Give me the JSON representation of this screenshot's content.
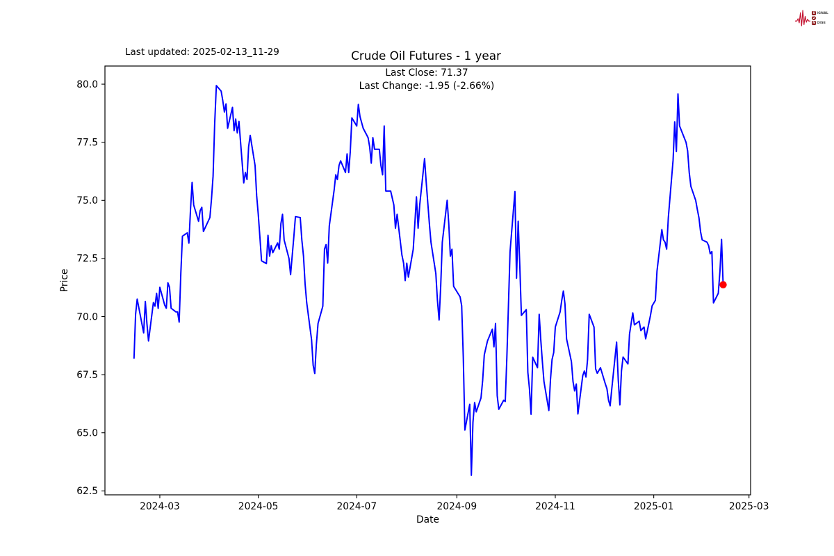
{
  "header": {
    "last_updated": "Last updated: 2025-02-13_11-29",
    "title": "Crude Oil Futures - 1 year",
    "annotation_line1": "Last Close: 71.37",
    "annotation_line2": "Last Change: -1.95 (-2.66%)"
  },
  "logo": {
    "line1_badge": "S",
    "line1_text": "IGNAL",
    "line2_badge": "2",
    "line2_text": "",
    "line3_badge": "N",
    "line3_text": "OISE",
    "waveform_color": "#c41230"
  },
  "chart_data": {
    "type": "line",
    "title": "Crude Oil Futures - 1 year",
    "xlabel": "Date",
    "ylabel": "Price",
    "legend": "none",
    "grid": false,
    "line_color": "#0000ff",
    "last_point_color": "#ff0000",
    "last_close": 71.37,
    "last_change": -1.95,
    "last_change_pct": -2.66,
    "x_ticks": [
      "2024-03",
      "2024-05",
      "2024-07",
      "2024-09",
      "2024-11",
      "2025-01",
      "2025-03"
    ],
    "y_ticks": [
      62.5,
      65.0,
      67.5,
      70.0,
      72.5,
      75.0,
      77.5,
      80.0
    ],
    "xlim": [
      "2024-01-27",
      "2025-03-02"
    ],
    "ylim": [
      62.33,
      80.78
    ],
    "series": [
      {
        "name": "Crude Oil Futures",
        "points": [
          [
            "2024-02-14",
            68.19
          ],
          [
            "2024-02-15",
            70.1
          ],
          [
            "2024-02-16",
            70.75
          ],
          [
            "2024-02-20",
            69.3
          ],
          [
            "2024-02-21",
            70.65
          ],
          [
            "2024-02-22",
            69.7
          ],
          [
            "2024-02-23",
            68.95
          ],
          [
            "2024-02-26",
            70.6
          ],
          [
            "2024-02-27",
            70.45
          ],
          [
            "2024-02-28",
            71.0
          ],
          [
            "2024-02-29",
            70.35
          ],
          [
            "2024-03-01",
            71.26
          ],
          [
            "2024-03-04",
            70.5
          ],
          [
            "2024-03-05",
            70.36
          ],
          [
            "2024-03-06",
            71.45
          ],
          [
            "2024-03-07",
            71.26
          ],
          [
            "2024-03-08",
            70.36
          ],
          [
            "2024-03-11",
            70.2
          ],
          [
            "2024-03-12",
            70.2
          ],
          [
            "2024-03-13",
            69.76
          ],
          [
            "2024-03-14",
            71.87
          ],
          [
            "2024-03-15",
            73.46
          ],
          [
            "2024-03-18",
            73.6
          ],
          [
            "2024-03-19",
            73.16
          ],
          [
            "2024-03-20",
            74.6
          ],
          [
            "2024-03-21",
            75.77
          ],
          [
            "2024-03-22",
            74.8
          ],
          [
            "2024-03-25",
            74.1
          ],
          [
            "2024-03-26",
            74.56
          ],
          [
            "2024-03-27",
            74.7
          ],
          [
            "2024-03-28",
            73.66
          ],
          [
            "2024-04-01",
            74.26
          ],
          [
            "2024-04-02",
            75.06
          ],
          [
            "2024-04-03",
            76.05
          ],
          [
            "2024-04-04",
            78.3
          ],
          [
            "2024-04-05",
            79.94
          ],
          [
            "2024-04-08",
            79.7
          ],
          [
            "2024-04-09",
            79.3
          ],
          [
            "2024-04-10",
            78.8
          ],
          [
            "2024-04-11",
            79.15
          ],
          [
            "2024-04-12",
            78.1
          ],
          [
            "2024-04-15",
            79.0
          ],
          [
            "2024-04-16",
            78.0
          ],
          [
            "2024-04-17",
            78.5
          ],
          [
            "2024-04-18",
            77.9
          ],
          [
            "2024-04-19",
            78.4
          ],
          [
            "2024-04-22",
            75.75
          ],
          [
            "2024-04-23",
            76.2
          ],
          [
            "2024-04-24",
            75.9
          ],
          [
            "2024-04-25",
            77.3
          ],
          [
            "2024-04-26",
            77.8
          ],
          [
            "2024-04-29",
            76.5
          ],
          [
            "2024-04-30",
            75.2
          ],
          [
            "2024-05-01",
            74.4
          ],
          [
            "2024-05-02",
            73.4
          ],
          [
            "2024-05-03",
            72.4
          ],
          [
            "2024-05-06",
            72.28
          ],
          [
            "2024-05-07",
            73.5
          ],
          [
            "2024-05-08",
            72.6
          ],
          [
            "2024-05-09",
            73.05
          ],
          [
            "2024-05-10",
            72.75
          ],
          [
            "2024-05-13",
            73.17
          ],
          [
            "2024-05-14",
            72.9
          ],
          [
            "2024-05-15",
            74.0
          ],
          [
            "2024-05-16",
            74.4
          ],
          [
            "2024-05-17",
            73.3
          ],
          [
            "2024-05-20",
            72.5
          ],
          [
            "2024-05-21",
            71.8
          ],
          [
            "2024-05-22",
            72.6
          ],
          [
            "2024-05-23",
            73.4
          ],
          [
            "2024-05-24",
            74.3
          ],
          [
            "2024-05-27",
            74.26
          ],
          [
            "2024-05-28",
            73.3
          ],
          [
            "2024-05-29",
            72.6
          ],
          [
            "2024-05-30",
            71.4
          ],
          [
            "2024-05-31",
            70.6
          ],
          [
            "2024-06-03",
            69.0
          ],
          [
            "2024-06-04",
            67.9
          ],
          [
            "2024-06-05",
            67.55
          ],
          [
            "2024-06-06",
            68.8
          ],
          [
            "2024-06-07",
            69.7
          ],
          [
            "2024-06-10",
            70.45
          ],
          [
            "2024-06-11",
            72.9
          ],
          [
            "2024-06-12",
            73.1
          ],
          [
            "2024-06-13",
            72.3
          ],
          [
            "2024-06-14",
            73.9
          ],
          [
            "2024-06-17",
            75.45
          ],
          [
            "2024-06-18",
            76.1
          ],
          [
            "2024-06-19",
            75.9
          ],
          [
            "2024-06-20",
            76.5
          ],
          [
            "2024-06-21",
            76.7
          ],
          [
            "2024-06-24",
            76.2
          ],
          [
            "2024-06-25",
            77.0
          ],
          [
            "2024-06-26",
            76.2
          ],
          [
            "2024-06-27",
            77.1
          ],
          [
            "2024-06-28",
            78.55
          ],
          [
            "2024-07-01",
            78.2
          ],
          [
            "2024-07-02",
            79.13
          ],
          [
            "2024-07-03",
            78.6
          ],
          [
            "2024-07-05",
            78.1
          ],
          [
            "2024-07-08",
            77.7
          ],
          [
            "2024-07-09",
            77.3
          ],
          [
            "2024-07-10",
            76.6
          ],
          [
            "2024-07-11",
            77.7
          ],
          [
            "2024-07-12",
            77.2
          ],
          [
            "2024-07-15",
            77.2
          ],
          [
            "2024-07-16",
            76.5
          ],
          [
            "2024-07-17",
            76.1
          ],
          [
            "2024-07-18",
            78.2
          ],
          [
            "2024-07-19",
            75.4
          ],
          [
            "2024-07-22",
            75.4
          ],
          [
            "2024-07-23",
            75.1
          ],
          [
            "2024-07-24",
            74.8
          ],
          [
            "2024-07-25",
            73.8
          ],
          [
            "2024-07-26",
            74.4
          ],
          [
            "2024-07-29",
            72.65
          ],
          [
            "2024-07-30",
            72.3
          ],
          [
            "2024-07-31",
            71.55
          ],
          [
            "2024-08-01",
            72.3
          ],
          [
            "2024-08-02",
            71.7
          ],
          [
            "2024-08-05",
            72.9
          ],
          [
            "2024-08-06",
            74.0
          ],
          [
            "2024-08-07",
            75.15
          ],
          [
            "2024-08-08",
            73.8
          ],
          [
            "2024-08-09",
            74.8
          ],
          [
            "2024-08-12",
            76.8
          ],
          [
            "2024-08-13",
            75.8
          ],
          [
            "2024-08-14",
            74.9
          ],
          [
            "2024-08-15",
            74.0
          ],
          [
            "2024-08-16",
            73.2
          ],
          [
            "2024-08-19",
            71.85
          ],
          [
            "2024-08-20",
            70.7
          ],
          [
            "2024-08-21",
            69.85
          ],
          [
            "2024-08-22",
            71.3
          ],
          [
            "2024-08-23",
            73.2
          ],
          [
            "2024-08-26",
            75.0
          ],
          [
            "2024-08-27",
            74.0
          ],
          [
            "2024-08-28",
            72.6
          ],
          [
            "2024-08-29",
            72.9
          ],
          [
            "2024-08-30",
            71.3
          ],
          [
            "2024-09-03",
            70.85
          ],
          [
            "2024-09-04",
            70.46
          ],
          [
            "2024-09-05",
            68.26
          ],
          [
            "2024-09-06",
            65.12
          ],
          [
            "2024-09-09",
            66.23
          ],
          [
            "2024-09-10",
            63.17
          ],
          [
            "2024-09-11",
            65.45
          ],
          [
            "2024-09-12",
            66.3
          ],
          [
            "2024-09-13",
            65.9
          ],
          [
            "2024-09-16",
            66.5
          ],
          [
            "2024-09-17",
            67.26
          ],
          [
            "2024-09-18",
            68.35
          ],
          [
            "2024-09-19",
            68.65
          ],
          [
            "2024-09-20",
            68.95
          ],
          [
            "2024-09-23",
            69.46
          ],
          [
            "2024-09-24",
            68.7
          ],
          [
            "2024-09-25",
            69.7
          ],
          [
            "2024-09-26",
            66.6
          ],
          [
            "2024-09-27",
            66.01
          ],
          [
            "2024-09-30",
            66.4
          ],
          [
            "2024-10-01",
            66.35
          ],
          [
            "2024-10-02",
            68.25
          ],
          [
            "2024-10-03",
            70.5
          ],
          [
            "2024-10-04",
            72.8
          ],
          [
            "2024-10-07",
            75.38
          ],
          [
            "2024-10-08",
            71.65
          ],
          [
            "2024-10-09",
            74.1
          ],
          [
            "2024-10-10",
            72.2
          ],
          [
            "2024-10-11",
            70.05
          ],
          [
            "2024-10-14",
            70.3
          ],
          [
            "2024-10-15",
            67.6
          ],
          [
            "2024-10-16",
            66.9
          ],
          [
            "2024-10-17",
            65.8
          ],
          [
            "2024-10-18",
            68.25
          ],
          [
            "2024-10-21",
            67.8
          ],
          [
            "2024-10-22",
            70.1
          ],
          [
            "2024-10-23",
            69.0
          ],
          [
            "2024-10-24",
            68.06
          ],
          [
            "2024-10-25",
            67.2
          ],
          [
            "2024-10-28",
            65.96
          ],
          [
            "2024-10-29",
            67.26
          ],
          [
            "2024-10-30",
            68.15
          ],
          [
            "2024-10-31",
            68.45
          ],
          [
            "2024-11-01",
            69.55
          ],
          [
            "2024-11-04",
            70.2
          ],
          [
            "2024-11-05",
            70.7
          ],
          [
            "2024-11-06",
            71.1
          ],
          [
            "2024-11-07",
            70.55
          ],
          [
            "2024-11-08",
            69.04
          ],
          [
            "2024-11-11",
            68.06
          ],
          [
            "2024-11-12",
            67.2
          ],
          [
            "2024-11-13",
            66.8
          ],
          [
            "2024-11-14",
            67.1
          ],
          [
            "2024-11-15",
            65.81
          ],
          [
            "2024-11-18",
            67.46
          ],
          [
            "2024-11-19",
            67.66
          ],
          [
            "2024-11-20",
            67.4
          ],
          [
            "2024-11-21",
            68.15
          ],
          [
            "2024-11-22",
            70.1
          ],
          [
            "2024-11-25",
            69.55
          ],
          [
            "2024-11-26",
            67.75
          ],
          [
            "2024-11-27",
            67.56
          ],
          [
            "2024-11-29",
            67.8
          ],
          [
            "2024-12-02",
            67.1
          ],
          [
            "2024-12-03",
            66.9
          ],
          [
            "2024-12-04",
            66.4
          ],
          [
            "2024-12-05",
            66.16
          ],
          [
            "2024-12-06",
            66.9
          ],
          [
            "2024-12-09",
            68.9
          ],
          [
            "2024-12-10",
            67.26
          ],
          [
            "2024-12-11",
            66.2
          ],
          [
            "2024-12-12",
            67.66
          ],
          [
            "2024-12-13",
            68.26
          ],
          [
            "2024-12-16",
            67.96
          ],
          [
            "2024-12-17",
            69.25
          ],
          [
            "2024-12-18",
            69.7
          ],
          [
            "2024-12-19",
            70.16
          ],
          [
            "2024-12-20",
            69.64
          ],
          [
            "2024-12-23",
            69.8
          ],
          [
            "2024-12-24",
            69.4
          ],
          [
            "2024-12-26",
            69.55
          ],
          [
            "2024-12-27",
            69.04
          ],
          [
            "2024-12-30",
            70.06
          ],
          [
            "2024-12-31",
            70.46
          ],
          [
            "2025-01-02",
            70.7
          ],
          [
            "2025-01-03",
            71.95
          ],
          [
            "2025-01-06",
            73.74
          ],
          [
            "2025-01-07",
            73.3
          ],
          [
            "2025-01-08",
            73.2
          ],
          [
            "2025-01-09",
            72.9
          ],
          [
            "2025-01-10",
            74.25
          ],
          [
            "2025-01-13",
            76.74
          ],
          [
            "2025-01-14",
            78.38
          ],
          [
            "2025-01-15",
            77.1
          ],
          [
            "2025-01-16",
            79.58
          ],
          [
            "2025-01-17",
            78.2
          ],
          [
            "2025-01-21",
            77.5
          ],
          [
            "2025-01-22",
            77.13
          ],
          [
            "2025-01-23",
            76.2
          ],
          [
            "2025-01-24",
            75.6
          ],
          [
            "2025-01-27",
            75.0
          ],
          [
            "2025-01-28",
            74.6
          ],
          [
            "2025-01-29",
            74.25
          ],
          [
            "2025-01-30",
            73.65
          ],
          [
            "2025-01-31",
            73.3
          ],
          [
            "2025-02-03",
            73.2
          ],
          [
            "2025-02-04",
            73.05
          ],
          [
            "2025-02-05",
            72.7
          ],
          [
            "2025-02-06",
            72.8
          ],
          [
            "2025-02-07",
            70.59
          ],
          [
            "2025-02-10",
            71.0
          ],
          [
            "2025-02-11",
            71.95
          ],
          [
            "2025-02-12",
            73.32
          ],
          [
            "2025-02-13",
            71.37
          ]
        ]
      }
    ]
  }
}
